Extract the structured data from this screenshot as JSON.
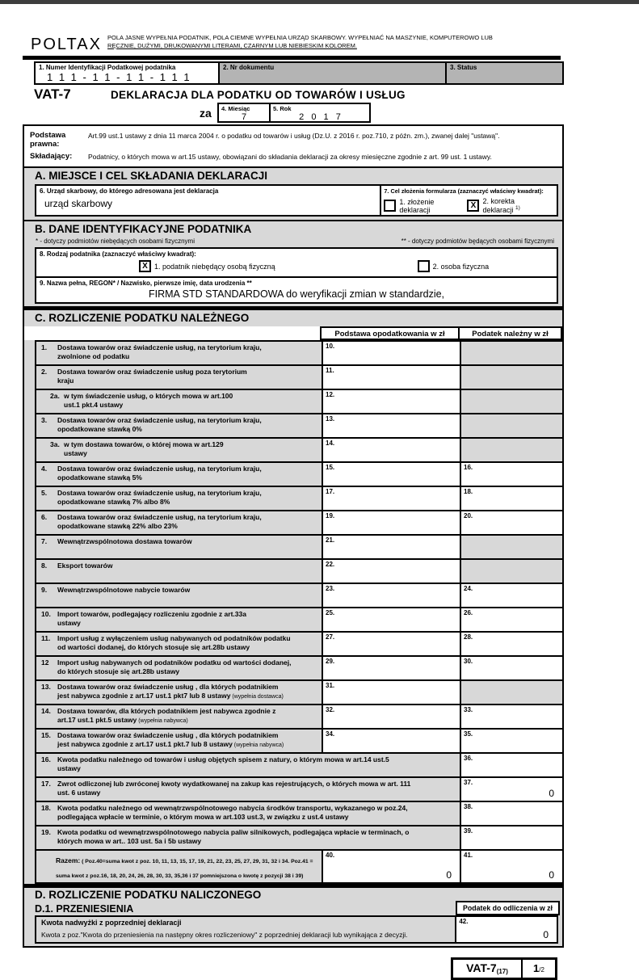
{
  "header": {
    "logo": "POLTAX",
    "instructions_line1": "POLA JASNE WYPEŁNIA PODATNIK, POLA CIEMNE WYPEŁNIA URZĄD SKARBOWY. WYPEŁNIAĆ NA MASZYNIE, KOMPUTEROWO LUB",
    "instructions_line2": "RĘCZNIE, DUŻYMI, DRUKOWANYMI LITERAMI, CZARNYM LUB NIEBIESKIM KOLOREM.",
    "field1_label": "1. Numer Identyfikacji Podatkowej podatnika",
    "field1_value": "1 1 1 - 1 1 - 1 1 - 1 1 1",
    "field2_label": "2. Nr dokumentu",
    "field3_label": "3. Status",
    "form_code": "VAT-7",
    "title": "DEKLARACJA DLA PODATKU OD TOWARÓW I USŁUG",
    "za_label": "za",
    "month_label": "4. Miesiąc",
    "month_value": "7",
    "year_label": "5. Rok",
    "year_value": "2 0 1 7"
  },
  "legal": {
    "basis_label": "Podstawa prawna:",
    "basis_text": "Art.99 ust.1 ustawy z dnia 11 marca 2004 r. o podatku od towarów i usług (Dz.U. z 2016 r. poz.710, z późn. zm.), zwanej dalej \"ustawą\".",
    "filer_label": "Składający:",
    "filer_text": "Podatnicy, o których mowa w art.15 ustawy, obowiązani do składania deklaracji za okresy miesięczne zgodnie z art. 99 ust. 1 ustawy."
  },
  "section_a": {
    "title": "A. MIEJSCE I CEL SKŁADANIA DEKLARACJI",
    "field6_label": "6. Urząd skarbowy, do którego adresowana jest deklaracja",
    "field6_value": "urząd skarbowy",
    "field7_label": "7. Cel złożenia formularza (zaznaczyć właściwy kwadrat):",
    "option1_label": "1. złożenie deklaracji",
    "option1_checked": "",
    "option2_label": "2. korekta deklaracji",
    "option2_checked": "X",
    "option2_sup": "1)"
  },
  "section_b": {
    "title": "B. DANE IDENTYFIKACYJNE PODATNIKA",
    "note_left": "* - dotyczy podmiotów niebędących osobami fizycznymi",
    "note_right": "** - dotyczy podmiotów będących osobami fizycznymi",
    "field8_label": "8. Rodzaj podatnika (zaznaczyć właściwy kwadrat):",
    "option1_label": "1. podatnik niebędący osobą fizyczną",
    "option1_checked": "X",
    "option2_label": "2. osoba fizyczna",
    "option2_checked": "",
    "field9_label": "9. Nazwa pełna, REGON* / Nazwisko, pierwsze imię, data urodzenia **",
    "field9_value": "FIRMA STD STANDARDOWA do weryfikacji zmian w standardzie,"
  },
  "section_c": {
    "title": "C. ROZLICZENIE PODATKU NALEŻNEGO",
    "col1_header": "Podstawa opodatkowania w zł",
    "col2_header": "Podatek należny w zł",
    "rows": [
      {
        "no": "1.",
        "l1": "Dostawa towarów oraz świadczenie usług, na terytorium kraju,",
        "l2": "zwolnione od podatku",
        "f1": "10.",
        "v1": "",
        "f2": "",
        "v2": ""
      },
      {
        "no": "2.",
        "l1": "Dostawa towarów oraz świadczenie usług poza terytorium",
        "l2": "kraju",
        "f1": "11.",
        "v1": "",
        "f2": "",
        "v2": ""
      },
      {
        "no": "2a.",
        "indent": true,
        "l1": "w tym świadczenie usług, o których mowa w art.100",
        "l2": "ust.1 pkt.4 ustawy",
        "f1": "12.",
        "v1": "",
        "f2": "",
        "v2": ""
      },
      {
        "no": "3.",
        "l1": "Dostawa towarów oraz świadczenie usług, na terytorium kraju,",
        "l2": "opodatkowane stawką 0%",
        "f1": "13.",
        "v1": "",
        "f2": "",
        "v2": ""
      },
      {
        "no": "3a.",
        "indent": true,
        "l1": "w tym dostawa towarów, o której mowa w art.129",
        "l2": "ustawy",
        "f1": "14.",
        "v1": "",
        "f2": "",
        "v2": ""
      },
      {
        "no": "4.",
        "l1": "Dostawa towarów oraz świadczenie usług, na terytorium kraju,",
        "l2": "opodatkowane stawką 5%",
        "f1": "15.",
        "v1": "",
        "f2": "16.",
        "v2": ""
      },
      {
        "no": "5.",
        "l1": "Dostawa towarów oraz świadczenie usług, na terytorium kraju,",
        "l2": "opodatkowane stawką 7% albo 8%",
        "f1": "17.",
        "v1": "",
        "f2": "18.",
        "v2": ""
      },
      {
        "no": "6.",
        "l1": "Dostawa towarów oraz świadczenie usług, na terytorium kraju,",
        "l2": "opodatkowane stawką 22% albo 23%",
        "f1": "19.",
        "v1": "",
        "f2": "20.",
        "v2": ""
      },
      {
        "no": "7.",
        "l1": "Wewnątrzwspólnotowa dostawa towarów",
        "l2": "",
        "f1": "21.",
        "v1": "",
        "f2": "",
        "v2": ""
      },
      {
        "no": "8.",
        "l1": "Eksport towarów",
        "l2": "",
        "f1": "22.",
        "v1": "",
        "f2": "",
        "v2": ""
      },
      {
        "no": "9.",
        "l1": "Wewnątrzwspólnotowe nabycie towarów",
        "l2": "",
        "f1": "23.",
        "v1": "",
        "f2": "24.",
        "v2": ""
      },
      {
        "no": "10.",
        "l1": "Import towarów, podlegający rozliczeniu zgodnie z art.33a",
        "l2": "ustawy",
        "f1": "25.",
        "v1": "",
        "f2": "26.",
        "v2": ""
      },
      {
        "no": "11.",
        "l1": "Import usług z wyłączeniem uslug nabywanych od podatników podatku",
        "l2": "od wartości dodanej, do których stosuje się art.28b ustawy",
        "f1": "27.",
        "v1": "",
        "f2": "28.",
        "v2": ""
      },
      {
        "no": "12",
        "l1": "Import usług nabywanych od podatników podatku od wartości dodanej,",
        "l2": "do których stosuje się art.28b ustawy",
        "f1": "29.",
        "v1": "",
        "f2": "30.",
        "v2": ""
      },
      {
        "no": "13.",
        "l1": "Dostawa towarów oraz świadczenie usług , dla których podatnikiem",
        "l2": "jest nabywca  zgodnie z art.17 ust.1 pkt7 lub 8 ustawy",
        "note": "(wypełnia dostawca)",
        "f1": "31.",
        "v1": "",
        "f2": "",
        "v2": ""
      },
      {
        "no": "14.",
        "l1": "Dostawa towarów, dla których podatnikiem jest nabywca  zgodnie z",
        "l2": "art.17 ust.1 pkt.5 ustawy",
        "note": "(wypełnia nabywca)",
        "f1": "32.",
        "v1": "",
        "f2": "33.",
        "v2": ""
      },
      {
        "no": "15.",
        "l1": "Dostawa towarów oraz świadczenie usług , dla których podatnikiem",
        "l2": "jest nabywca  zgodnie z art.17 ust.1 pkt.7 lub 8 ustawy",
        "note": "(wypełnia nabywca)",
        "f1": "34.",
        "v1": "",
        "f2": "35.",
        "v2": ""
      }
    ],
    "wide_rows": [
      {
        "no": "16.",
        "l1": "Kwota podatku należnego od towarów i usług objętych spisem z natury, o którym mowa w art.14 ust.5",
        "l2": "ustawy",
        "f": "36.",
        "v": ""
      },
      {
        "no": "17.",
        "l1": "Zwrot odliczonej lub zwróconej kwoty wydatkowanej na zakup kas rejestrujących, o których mowa w art. 111",
        "l2": "ust. 6 ustawy",
        "f": "37.",
        "v": "0"
      },
      {
        "no": "18.",
        "l1": "Kwota podatku należnego od wewnątrzwspólnotowego nabycia środków transportu, wykazanego w poz.24,",
        "l2": "podlegająca wpłacie w terminie, o którym mowa w art.103 ust.3, w związku z ust.4 ustawy",
        "f": "38.",
        "v": ""
      },
      {
        "no": "19.",
        "l1": "Kwota podatku od wewnątrzwspólnotowego nabycia paliw silnikowych,  podlegająca wpłacie w terminach,  o",
        "l2": "których mowa w art.. 103 ust. 5a i 5b ustawy",
        "f": "39.",
        "v": ""
      }
    ],
    "razem": {
      "label": "Razem:",
      "note": "( Poz.40=suma kwot z poz. 10, 11, 13, 15, 17, 19, 21, 22, 23, 25, 27, 29, 31, 32 i 34. Poz.41 = suma kwot z poz.16, 18, 20, 24, 26, 28, 30, 33, 35,36 i 37 pomniejszona o kwotę z pozycji 38 i 39)",
      "f1": "40.",
      "v1": "0",
      "f2": "41.",
      "v2": "0"
    }
  },
  "section_d": {
    "title": "D. ROZLICZENIE PODATKU NALICZONEGO",
    "d1_title": "D.1. PRZENIESIENIA",
    "col_header": "Podatek do odliczenia w zł",
    "row_label_bold": "Kwota nadwyżki z poprzedniej deklaracji",
    "row_label_normal": "Kwota z poz.\"Kwota do przeniesienia na następny okres rozliczeniowy\" z poprzedniej deklaracji lub wynikająca z decyzji.",
    "field_no": "42.",
    "value": "0"
  },
  "footer": {
    "form_code": "VAT-7",
    "version": "(17)",
    "page_num": "1",
    "page_suffix": "/2"
  },
  "colors": {
    "dark_field_gray": "#b4b4b4",
    "shaded_cell_gray": "#d8d8d8",
    "border_black": "#000000",
    "top_bar": "#3d3d3d"
  }
}
